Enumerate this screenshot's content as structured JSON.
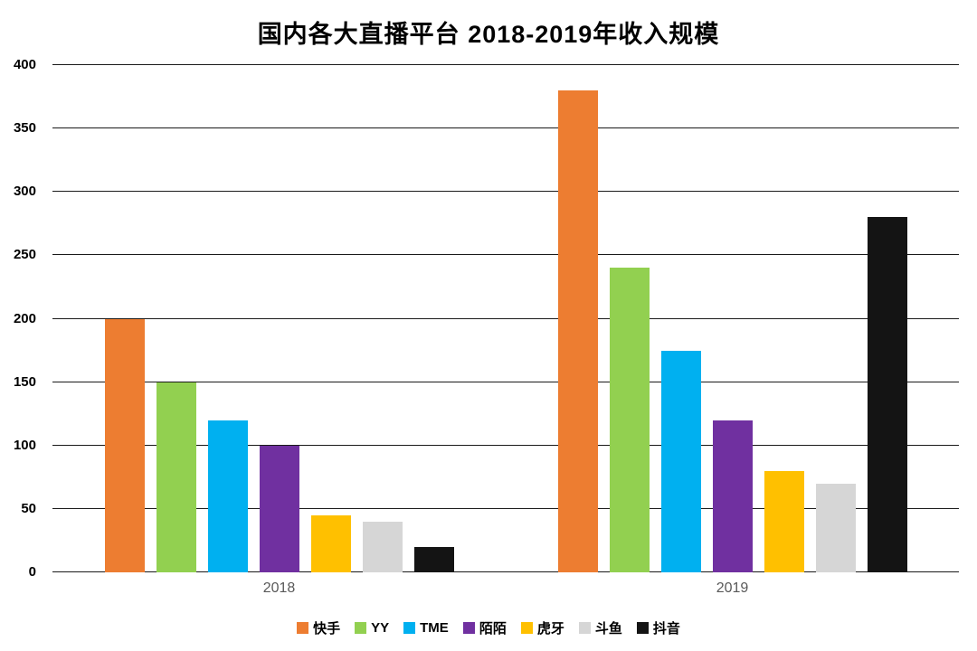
{
  "chart_data": {
    "type": "bar",
    "title": "国内各大直播平台 2018-2019年收入规模",
    "categories": [
      "2018",
      "2019"
    ],
    "series": [
      {
        "name": "快手",
        "color": "#ED7D31",
        "values": [
          200,
          380
        ]
      },
      {
        "name": "YY",
        "color": "#92D050",
        "values": [
          150,
          240
        ]
      },
      {
        "name": "TME",
        "color": "#00B0F0",
        "values": [
          120,
          175
        ]
      },
      {
        "name": "陌陌",
        "color": "#7030A0",
        "values": [
          100,
          120
        ]
      },
      {
        "name": "虎牙",
        "color": "#FFC000",
        "values": [
          45,
          80
        ]
      },
      {
        "name": "斗鱼",
        "color": "#D6D6D6",
        "values": [
          40,
          70
        ]
      },
      {
        "name": "抖音",
        "color": "#141414",
        "values": [
          20,
          280
        ]
      }
    ],
    "ylim": [
      0,
      400
    ],
    "ytick_step": 50,
    "grid": true,
    "legend_position": "bottom"
  }
}
